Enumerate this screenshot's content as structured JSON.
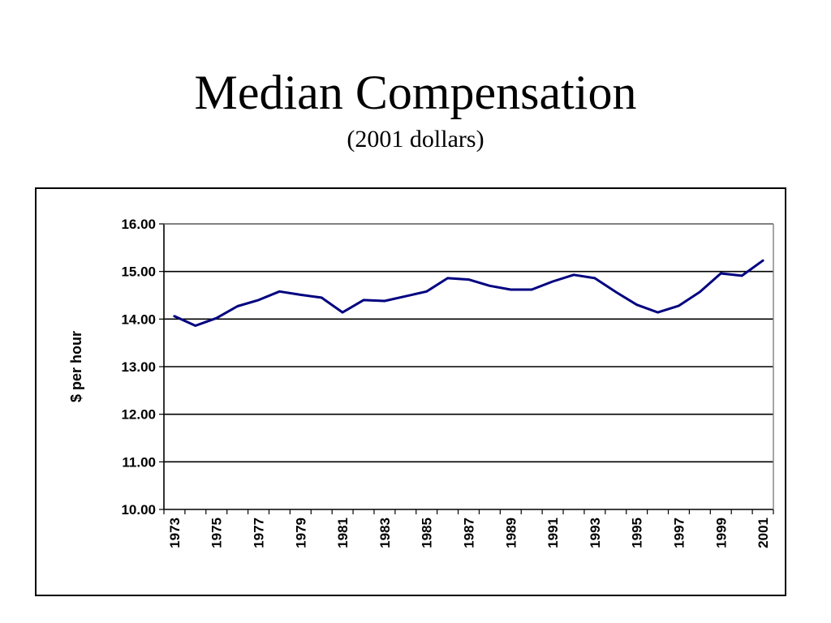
{
  "slide": {
    "title": "Median Compensation",
    "subtitle": "(2001 dollars)"
  },
  "chart_data": {
    "type": "line",
    "title": "",
    "xlabel": "",
    "ylabel": "$ per hour",
    "ylim": [
      10,
      16
    ],
    "y_ticks": [
      "10.00",
      "11.00",
      "12.00",
      "13.00",
      "14.00",
      "15.00",
      "16.00"
    ],
    "x_tick_labels": [
      "1973",
      "1975",
      "1977",
      "1979",
      "1981",
      "1983",
      "1985",
      "1987",
      "1989",
      "1991",
      "1993",
      "1995",
      "1997",
      "1999",
      "2001"
    ],
    "grid": "horizontal",
    "legend": "none",
    "line_color": "#000080",
    "x": [
      1973,
      1974,
      1975,
      1976,
      1977,
      1978,
      1979,
      1980,
      1981,
      1982,
      1983,
      1984,
      1985,
      1986,
      1987,
      1988,
      1989,
      1990,
      1991,
      1992,
      1993,
      1994,
      1995,
      1996,
      1997,
      1998,
      1999,
      2000,
      2001
    ],
    "series": [
      {
        "values": [
          14.06,
          13.86,
          14.02,
          14.27,
          14.4,
          14.58,
          14.51,
          14.45,
          14.14,
          14.4,
          14.38,
          14.48,
          14.58,
          14.86,
          14.83,
          14.7,
          14.62,
          14.62,
          14.79,
          14.93,
          14.86,
          14.57,
          14.3,
          14.14,
          14.28,
          14.57,
          14.96,
          14.91,
          15.23
        ]
      }
    ]
  }
}
